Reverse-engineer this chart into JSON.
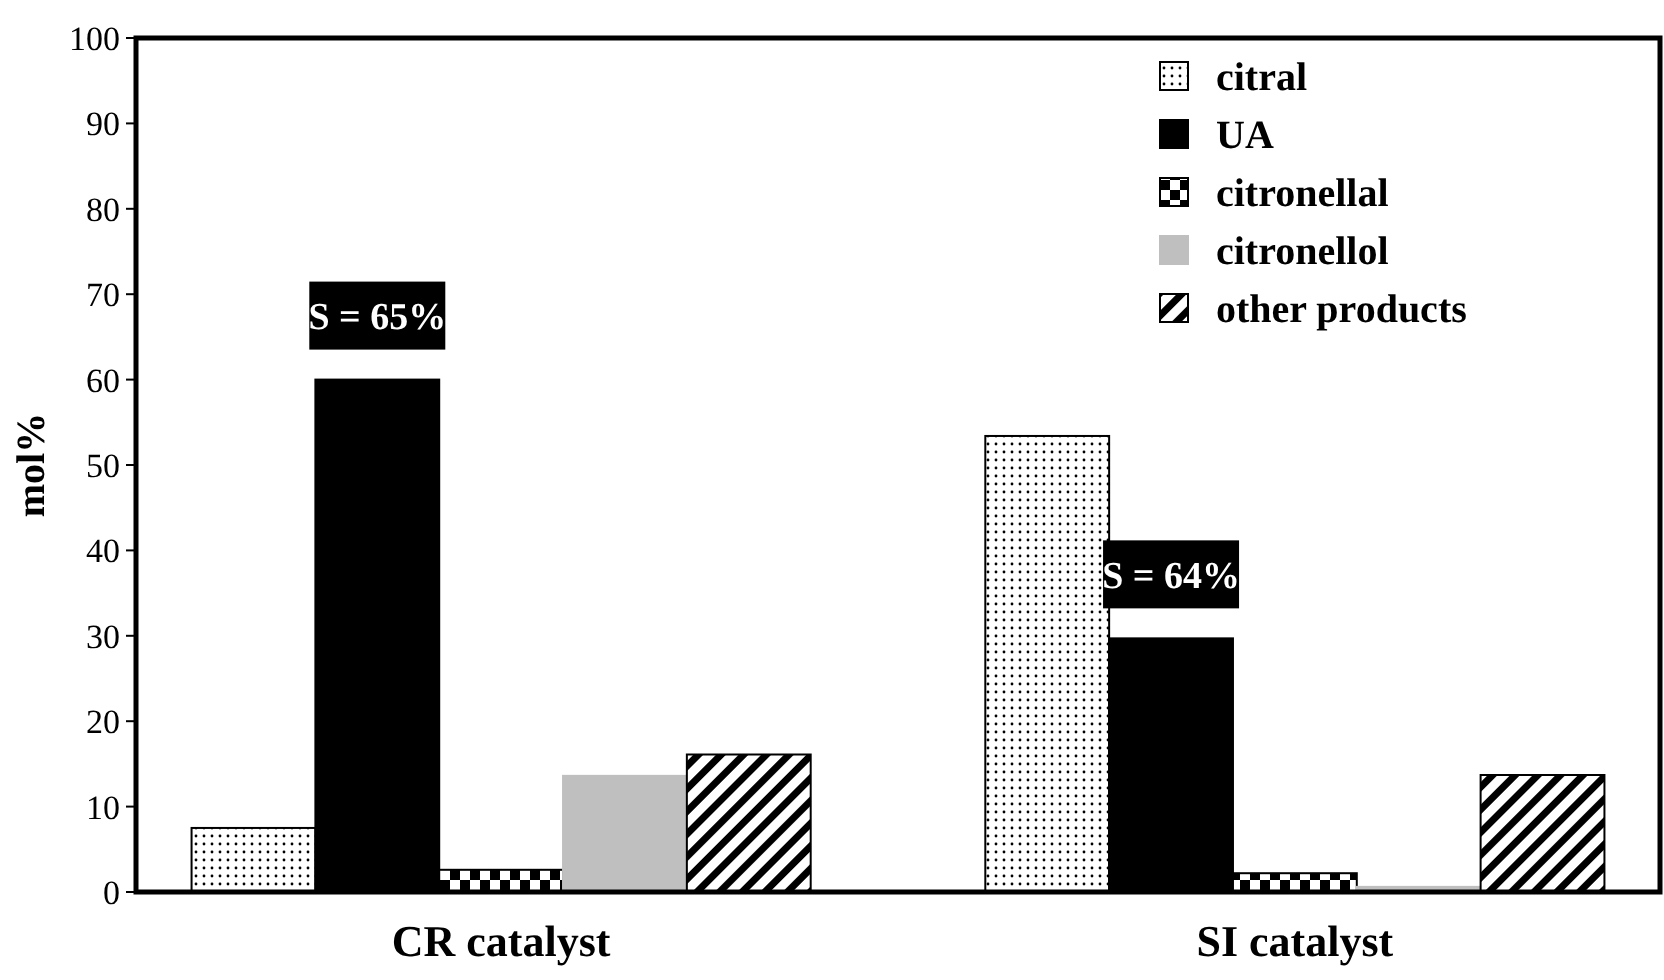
{
  "chart_data": {
    "type": "bar",
    "ylabel": "mol%",
    "categories": [
      "CR catalyst",
      "SI catalyst"
    ],
    "series": [
      {
        "name": "citral",
        "color": "#000000",
        "values": [
          7.5,
          53.4
        ]
      },
      {
        "name": "UA",
        "color": "#000000",
        "values": [
          60,
          29.7
        ]
      },
      {
        "name": "citronellal",
        "color": "#000000",
        "values": [
          2.6,
          2.2
        ]
      },
      {
        "name": "citronellol",
        "color": "#bfbfbf",
        "values": [
          13.6,
          0.6
        ]
      },
      {
        "name": "other products",
        "color": "#000000",
        "values": [
          16.1,
          13.7
        ]
      }
    ],
    "ylim": [
      0,
      100
    ],
    "yticks": [
      0,
      10,
      20,
      30,
      40,
      50,
      60,
      70,
      80,
      90,
      100
    ],
    "grid": false,
    "legend": "top right",
    "annotations": [
      "S = 65%",
      "S = 64%"
    ]
  }
}
